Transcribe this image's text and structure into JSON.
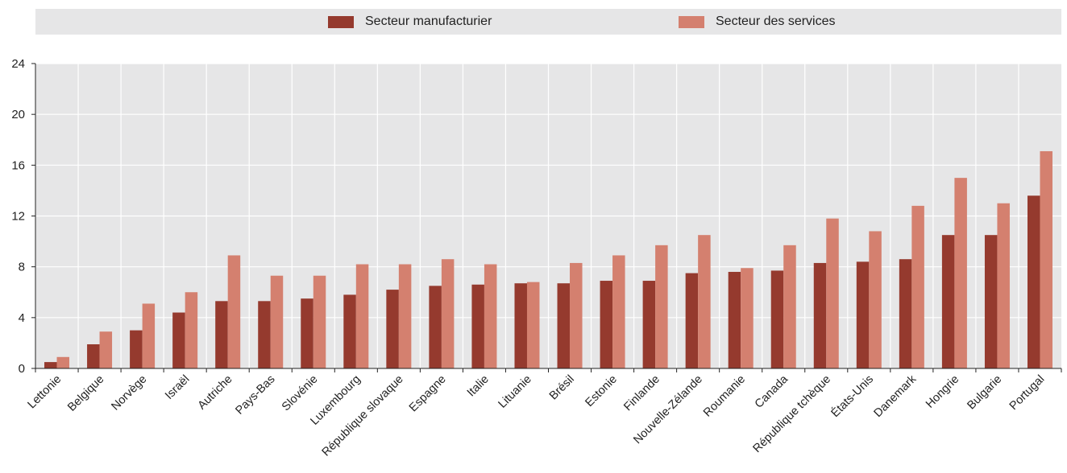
{
  "chart_data": {
    "type": "bar",
    "title": "",
    "xlabel": "",
    "ylabel": "",
    "ylim": [
      0,
      24
    ],
    "yticks": [
      0,
      4,
      8,
      12,
      16,
      20,
      24
    ],
    "grid": true,
    "legend_position": "top",
    "categories": [
      "Lettonie",
      "Belgique",
      "Norvège",
      "Israël",
      "Autriche",
      "Pays-Bas",
      "Slovénie",
      "Luxembourg",
      "République slovaque",
      "Espagne",
      "Italie",
      "Lituanie",
      "Brésil",
      "Estonie",
      "Finlande",
      "Nouvelle-Zélande",
      "Roumanie",
      "Canada",
      "République tchèque",
      "États-Unis",
      "Danemark",
      "Hongrie",
      "Bulgarie",
      "Portugal"
    ],
    "series": [
      {
        "name": "Secteur manufacturier",
        "color": "#953a2e",
        "values": [
          0.5,
          1.9,
          3.0,
          4.4,
          5.3,
          5.3,
          5.5,
          5.8,
          6.2,
          6.5,
          6.6,
          6.7,
          6.7,
          6.9,
          6.9,
          7.5,
          7.6,
          7.7,
          8.3,
          8.4,
          8.6,
          10.5,
          10.5,
          13.6
        ]
      },
      {
        "name": "Secteur des services",
        "color": "#d4806f",
        "values": [
          0.9,
          2.9,
          5.1,
          6.0,
          8.9,
          7.3,
          7.3,
          8.2,
          8.2,
          8.6,
          8.2,
          6.8,
          8.3,
          8.9,
          9.7,
          10.5,
          7.9,
          9.7,
          11.8,
          10.8,
          12.8,
          15.0,
          13.0,
          17.1
        ]
      }
    ]
  }
}
